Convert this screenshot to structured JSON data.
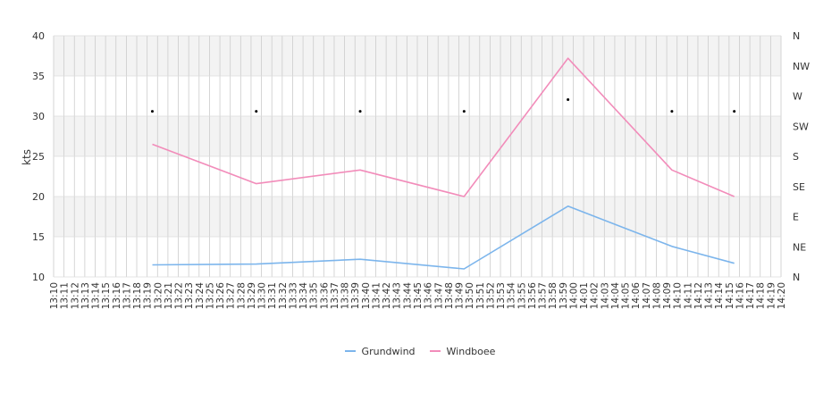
{
  "chart_data": {
    "type": "line",
    "ylabel": "kts",
    "ylim": [
      10,
      40
    ],
    "y_ticks": [
      10,
      15,
      20,
      25,
      30,
      35,
      40
    ],
    "direction_ticks": [
      "N",
      "NE",
      "E",
      "SE",
      "S",
      "SW",
      "W",
      "NW",
      "N"
    ],
    "x_ticks": [
      "13:10",
      "13:11",
      "13:12",
      "13:13",
      "13:14",
      "13:15",
      "13:16",
      "13:17",
      "13:18",
      "13:19",
      "13:20",
      "13:21",
      "13:22",
      "13:23",
      "13:24",
      "13:25",
      "13:26",
      "13:27",
      "13:28",
      "13:29",
      "13:30",
      "13:31",
      "13:32",
      "13:33",
      "13:34",
      "13:35",
      "13:36",
      "13:37",
      "13:38",
      "13:39",
      "13:40",
      "13:41",
      "13:42",
      "13:43",
      "13:44",
      "13:45",
      "13:46",
      "13:47",
      "13:48",
      "13:49",
      "13:50",
      "13:51",
      "13:52",
      "13:53",
      "13:54",
      "13:55",
      "13:56",
      "13:57",
      "13:58",
      "13:59",
      "14:00",
      "14:01",
      "14:02",
      "14:03",
      "14:04",
      "14:05",
      "14:06",
      "14:07",
      "14:08",
      "14:09",
      "14:10",
      "14:11",
      "14:12",
      "14:13",
      "14:14",
      "14:15",
      "14:16",
      "14:17",
      "14:18",
      "14:19",
      "14:20"
    ],
    "x_range": [
      "13:10",
      "14:20"
    ],
    "grid": true,
    "legend_position": "bottom",
    "points_x": [
      "13:19:30",
      "13:29:30",
      "13:39:30",
      "13:49:30",
      "13:59:30",
      "14:09:30",
      "14:15:30"
    ],
    "series": [
      {
        "name": "Grundwind",
        "color": "#7cb5ec",
        "values": [
          11.5,
          11.6,
          12.2,
          11.0,
          18.8,
          13.8,
          11.7
        ]
      },
      {
        "name": "Windboee",
        "color": "#f28cba",
        "values": [
          26.5,
          21.6,
          23.3,
          20.0,
          37.2,
          23.3,
          20.0
        ]
      }
    ],
    "direction_markers": [
      "W",
      "W",
      "W",
      "W",
      "W",
      "W",
      "W"
    ]
  }
}
